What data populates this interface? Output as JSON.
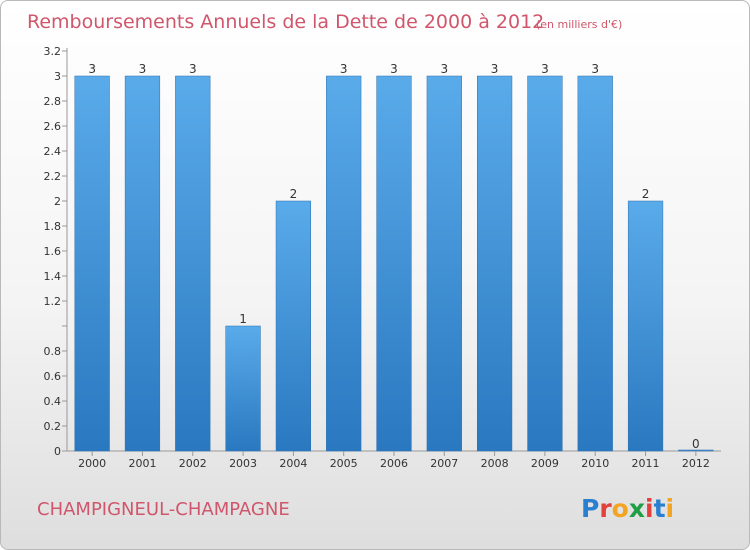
{
  "chart_data": {
    "type": "bar",
    "title": "Remboursements Annuels de la Dette de 2000 à 2012",
    "subtitle": "(en milliers d'€)",
    "xlabel": "",
    "ylabel": "",
    "categories": [
      "2000",
      "2001",
      "2002",
      "2003",
      "2004",
      "2005",
      "2006",
      "2007",
      "2008",
      "2009",
      "2010",
      "2011",
      "2012"
    ],
    "values": [
      3,
      3,
      3,
      1,
      2,
      3,
      3,
      3,
      3,
      3,
      3,
      2,
      0
    ],
    "data_labels": [
      "3",
      "3",
      "3",
      "1",
      "2",
      "3",
      "3",
      "3",
      "3",
      "3",
      "3",
      "2",
      "0"
    ],
    "ylim": [
      0,
      3.2
    ],
    "y_ticks": [
      0,
      0.2,
      0.4,
      0.6,
      0.8,
      1,
      1.2,
      1.4,
      1.6,
      1.8,
      2,
      2.2,
      2.4,
      2.6,
      2.8,
      3,
      3.2
    ],
    "y_tick_labels": [
      "0",
      "0.2",
      "0.4",
      "0.6",
      "0.8",
      "",
      "1.2",
      "1.4",
      "1.6",
      "1.8",
      "2",
      "2.2",
      "2.4",
      "2.6",
      "2.8",
      "3",
      "3.2"
    ],
    "grid": false,
    "bar_color": "#3d8fd6"
  },
  "footer": {
    "commune": "CHAMPIGNEUL-CHAMPAGNE",
    "logo_letters": [
      "P",
      "r",
      "o",
      "x",
      "i",
      "t",
      "i"
    ],
    "logo_colors": [
      "#2a7fd1",
      "#e2403a",
      "#f3a423",
      "#1f9e46",
      "#e2403a",
      "#2a7fd1",
      "#f3a423"
    ]
  }
}
